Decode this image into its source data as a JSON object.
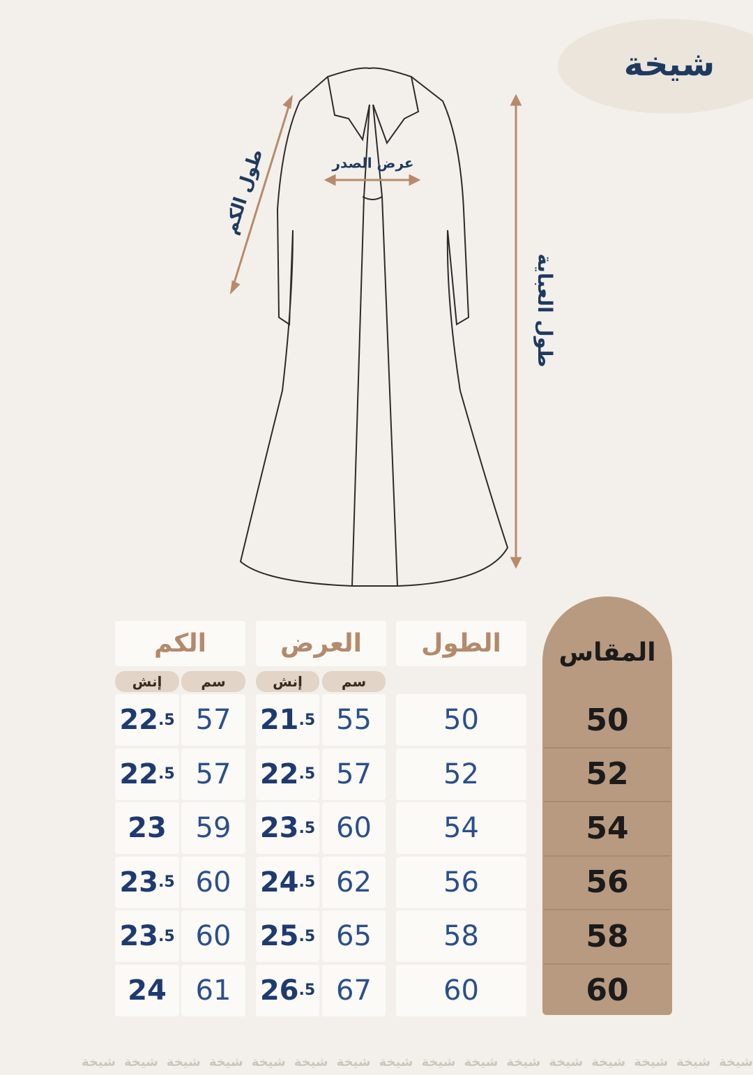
{
  "brand": "شيخة",
  "diagram": {
    "sleeve_length": "طول الكم",
    "chest_width": "عرض الصدر",
    "abaya_length": "طول العباية"
  },
  "table": {
    "headers": {
      "size": "المقاس",
      "length": "الطول",
      "width": "العرض",
      "sleeve": "الكم"
    },
    "units": {
      "cm": "سم",
      "inch": "إنش"
    },
    "rows": [
      {
        "size": "50",
        "length": "50",
        "width_cm": "55",
        "width_inch": "21.5",
        "sleeve_cm": "57",
        "sleeve_inch": "22.5"
      },
      {
        "size": "52",
        "length": "52",
        "width_cm": "57",
        "width_inch": "22.5",
        "sleeve_cm": "57",
        "sleeve_inch": "22.5"
      },
      {
        "size": "54",
        "length": "54",
        "width_cm": "60",
        "width_inch": "23.5",
        "sleeve_cm": "59",
        "sleeve_inch": "23"
      },
      {
        "size": "56",
        "length": "56",
        "width_cm": "62",
        "width_inch": "24.5",
        "sleeve_cm": "60",
        "sleeve_inch": "23.5"
      },
      {
        "size": "58",
        "length": "58",
        "width_cm": "65",
        "width_inch": "25.5",
        "sleeve_cm": "60",
        "sleeve_inch": "23.5"
      },
      {
        "size": "60",
        "length": "60",
        "width_cm": "67",
        "width_inch": "26.5",
        "sleeve_cm": "61",
        "sleeve_inch": "24"
      }
    ]
  }
}
